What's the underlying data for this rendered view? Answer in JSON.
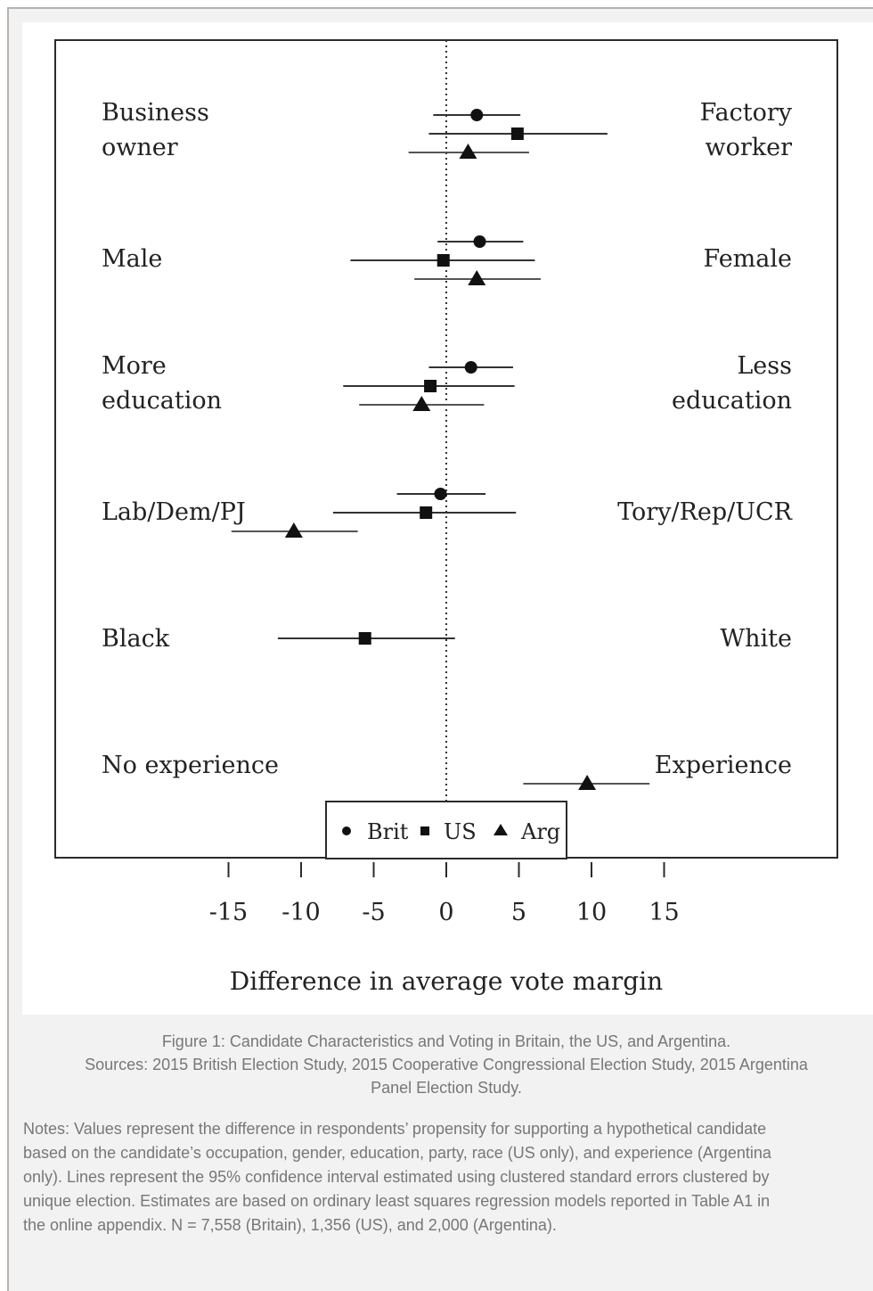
{
  "chart_data": {
    "type": "coefficient-plot",
    "xlabel": "Difference in average vote margin",
    "xticks": [
      -15,
      -10,
      -5,
      0,
      5,
      10,
      15
    ],
    "xlim": [
      -20,
      23
    ],
    "reference_line": 0,
    "legend": {
      "placement": "bottom-center",
      "entries": [
        {
          "label": "Brit",
          "marker": "circle"
        },
        {
          "label": "US",
          "marker": "square"
        },
        {
          "label": "Arg",
          "marker": "triangle"
        }
      ]
    },
    "rows": [
      {
        "left_label": [
          "Business",
          "owner"
        ],
        "right_label": [
          "Factory",
          "worker"
        ],
        "estimates": [
          {
            "series": "Brit",
            "est": 2.1,
            "lo": -0.9,
            "hi": 5.1
          },
          {
            "series": "US",
            "est": 4.9,
            "lo": -1.2,
            "hi": 11.1
          },
          {
            "series": "Arg",
            "est": 1.5,
            "lo": -2.6,
            "hi": 5.7
          }
        ]
      },
      {
        "left_label": [
          "Male"
        ],
        "right_label": [
          "Female"
        ],
        "estimates": [
          {
            "series": "Brit",
            "est": 2.3,
            "lo": -0.6,
            "hi": 5.3
          },
          {
            "series": "US",
            "est": -0.2,
            "lo": -6.6,
            "hi": 6.1
          },
          {
            "series": "Arg",
            "est": 2.1,
            "lo": -2.2,
            "hi": 6.5
          }
        ]
      },
      {
        "left_label": [
          "More",
          "education"
        ],
        "right_label": [
          "Less",
          "education"
        ],
        "estimates": [
          {
            "series": "Brit",
            "est": 1.7,
            "lo": -1.2,
            "hi": 4.6
          },
          {
            "series": "US",
            "est": -1.1,
            "lo": -7.1,
            "hi": 4.7
          },
          {
            "series": "Arg",
            "est": -1.7,
            "lo": -6.0,
            "hi": 2.6
          }
        ]
      },
      {
        "left_label": [
          "Lab/Dem/PJ"
        ],
        "right_label": [
          "Tory/Rep/UCR"
        ],
        "estimates": [
          {
            "series": "Brit",
            "est": -0.4,
            "lo": -3.4,
            "hi": 2.7
          },
          {
            "series": "US",
            "est": -1.4,
            "lo": -7.8,
            "hi": 4.8
          },
          {
            "series": "Arg",
            "est": -10.5,
            "lo": -14.8,
            "hi": -6.1
          }
        ]
      },
      {
        "left_label": [
          "Black"
        ],
        "right_label": [
          "White"
        ],
        "estimates": [
          {
            "series": "US",
            "est": -5.6,
            "lo": -11.6,
            "hi": 0.6
          }
        ]
      },
      {
        "left_label": [
          "No experience"
        ],
        "right_label": [
          "Experience"
        ],
        "estimates": [
          {
            "series": "Arg",
            "est": 9.7,
            "lo": 5.3,
            "hi": 14.0
          }
        ]
      }
    ]
  },
  "caption": {
    "title": "Figure 1: Candidate Characteristics and Voting in Britain, the US, and Argentina.",
    "sources": [
      "Sources: 2015 British Election Study, 2015 Cooperative Congressional Election Study, 2015 Argentina",
      "Panel Election Study."
    ]
  },
  "notes": [
    "Notes: Values represent the difference in respondents’ propensity for supporting a hypothetical candidate",
    "based on the candidate’s occupation, gender, education, party, race (US only), and experience (Argentina",
    "only). Lines represent the 95% confidence interval estimated using clustered standard errors clustered by",
    "unique election. Estimates are based on ordinary least squares regression models reported in Table A1 in",
    "the online appendix. N = 7,558 (Britain), 1,356 (US), and 2,000 (Argentina)."
  ]
}
